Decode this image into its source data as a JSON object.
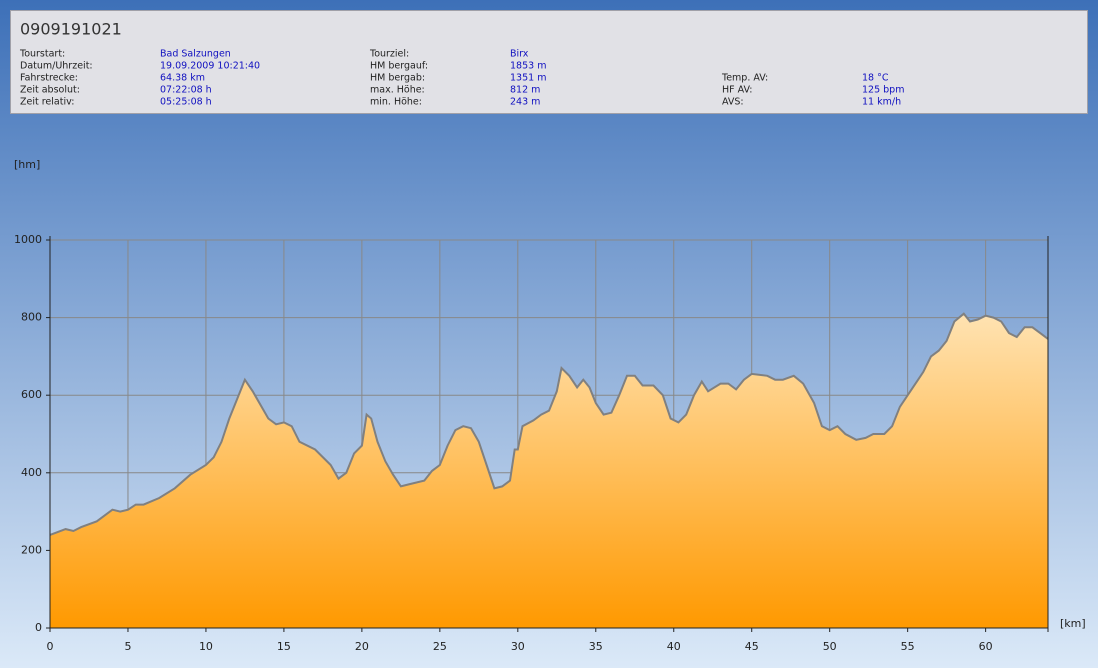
{
  "header": {
    "title": "0909191021",
    "columns": [
      [
        {
          "label": "Tourstart:",
          "value": "Bad Salzungen"
        },
        {
          "label": "Datum/Uhrzeit:",
          "value": "19.09.2009 10:21:40"
        },
        {
          "label": "Fahrstrecke:",
          "value": "64.38 km"
        },
        {
          "label": "Zeit absolut:",
          "value": "07:22:08 h"
        },
        {
          "label": "Zeit relativ:",
          "value": "05:25:08 h"
        }
      ],
      [
        {
          "label": "Tourziel:",
          "value": "Birx"
        },
        {
          "label": "HM bergauf:",
          "value": "1853 m"
        },
        {
          "label": "HM bergab:",
          "value": "1351 m"
        },
        {
          "label": "max. Höhe:",
          "value": "812 m"
        },
        {
          "label": "min. Höhe:",
          "value": "243 m"
        }
      ],
      [
        {
          "label": "Temp. AV:",
          "value": "18 °C"
        },
        {
          "label": "HF AV:",
          "value": "125 bpm"
        },
        {
          "label": "AVS:",
          "value": "11 km/h"
        }
      ]
    ]
  },
  "chart_data": {
    "type": "area",
    "ylabel": "[hm]",
    "xlabel": "[km]",
    "x": [
      0,
      1,
      1.5,
      2,
      3,
      4,
      4.5,
      5,
      5.5,
      6,
      7,
      8,
      9,
      10,
      10.5,
      11,
      11.5,
      12,
      12.5,
      13,
      14,
      14.5,
      15,
      15.5,
      16,
      17,
      18,
      18.5,
      19,
      19.5,
      20,
      20.3,
      20.6,
      21,
      21.5,
      22,
      22.5,
      23,
      24,
      24.5,
      25,
      25.5,
      26,
      26.5,
      27,
      27.5,
      28,
      28.5,
      29,
      29.5,
      29.8,
      30,
      30.3,
      31,
      31.5,
      32,
      32.5,
      32.8,
      33.3,
      33.8,
      34.2,
      34.6,
      35,
      35.5,
      36,
      36.5,
      37,
      37.5,
      38,
      38.7,
      39.3,
      39.8,
      40.3,
      40.8,
      41.3,
      41.8,
      42.2,
      43,
      43.5,
      44,
      44.5,
      45,
      46,
      46.5,
      47,
      47.7,
      48.3,
      49,
      49.5,
      50,
      50.5,
      51,
      51.7,
      52.3,
      52.8,
      53.5,
      54,
      54.5,
      55,
      55.5,
      56,
      56.5,
      57,
      57.5,
      58,
      58.6,
      59,
      59.5,
      60,
      60.5,
      61,
      61.5,
      62,
      62.5,
      63,
      63.5,
      64
    ],
    "values": [
      240,
      255,
      250,
      260,
      275,
      305,
      300,
      305,
      318,
      318,
      335,
      360,
      395,
      420,
      440,
      480,
      540,
      590,
      640,
      610,
      540,
      525,
      530,
      520,
      480,
      460,
      420,
      385,
      400,
      450,
      470,
      550,
      540,
      480,
      430,
      395,
      365,
      370,
      380,
      405,
      420,
      470,
      510,
      520,
      515,
      480,
      420,
      360,
      365,
      380,
      460,
      460,
      520,
      535,
      550,
      560,
      610,
      670,
      650,
      620,
      640,
      620,
      580,
      550,
      555,
      600,
      650,
      650,
      625,
      625,
      600,
      540,
      530,
      550,
      600,
      635,
      610,
      630,
      630,
      615,
      640,
      655,
      650,
      640,
      640,
      650,
      630,
      580,
      520,
      510,
      520,
      500,
      485,
      490,
      500,
      500,
      520,
      570,
      600,
      630,
      660,
      700,
      715,
      740,
      790,
      810,
      790,
      795,
      805,
      800,
      790,
      760,
      750,
      775,
      775,
      760,
      745
    ],
    "xlim": [
      0,
      64
    ],
    "ylim": [
      0,
      1000
    ],
    "xticks": [
      0,
      5,
      10,
      15,
      20,
      25,
      30,
      35,
      40,
      45,
      50,
      55,
      60
    ],
    "yticks": [
      0,
      200,
      400,
      600,
      800,
      1000
    ],
    "grid": true,
    "color": "#ff9900",
    "line_color": "#808080"
  }
}
